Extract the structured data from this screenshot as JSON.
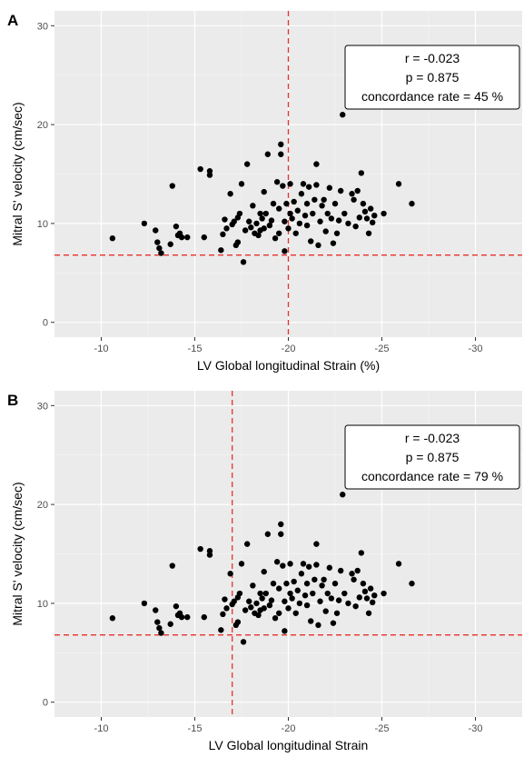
{
  "chart_data": [
    {
      "type": "scatter",
      "panel_label": "A",
      "xlabel": "LV Global longitudinal Strain (%)",
      "ylabel": "Mitral S' velocity (cm/sec)",
      "xlim": [
        -7.5,
        -32.5
      ],
      "ylim": [
        -1.5,
        31.5
      ],
      "x_ticks": [
        -10,
        -15,
        -20,
        -25,
        -30
      ],
      "y_ticks": [
        0,
        10,
        20,
        30
      ],
      "background": "#ebebeb",
      "grid": true,
      "point_color": "#000000",
      "reference_lines": {
        "vertical_x": -20,
        "horizontal_y": 6.8,
        "color": "#e8312a",
        "style": "dashed"
      },
      "annotation": {
        "lines": [
          "r = -0.023",
          "p = 0.875",
          "concordance rate = 45 %"
        ],
        "position": "top-right"
      }
    },
    {
      "type": "scatter",
      "panel_label": "B",
      "xlabel": "LV Global longitudinal Strain",
      "ylabel": "Mitral S' velocity (cm/sec)",
      "xlim": [
        -7.5,
        -32.5
      ],
      "ylim": [
        -1.5,
        31.5
      ],
      "x_ticks": [
        -10,
        -15,
        -20,
        -25,
        -30
      ],
      "y_ticks": [
        0,
        10,
        20,
        30
      ],
      "background": "#ebebeb",
      "grid": true,
      "point_color": "#000000",
      "reference_lines": {
        "vertical_x": -17,
        "horizontal_y": 6.8,
        "color": "#e8312a",
        "style": "dashed"
      },
      "annotation": {
        "lines": [
          "r = -0.023",
          "p = 0.875",
          "concordance rate = 79 %"
        ],
        "position": "top-right"
      }
    }
  ],
  "points": [
    [
      -10.6,
      8.5
    ],
    [
      -12.3,
      10.0
    ],
    [
      -12.9,
      9.3
    ],
    [
      -13.0,
      8.1
    ],
    [
      -13.1,
      7.5
    ],
    [
      -13.2,
      7.0
    ],
    [
      -13.7,
      7.9
    ],
    [
      -13.8,
      13.8
    ],
    [
      -14.0,
      9.7
    ],
    [
      -14.1,
      8.8
    ],
    [
      -14.2,
      9.0
    ],
    [
      -14.3,
      8.6
    ],
    [
      -14.6,
      8.6
    ],
    [
      -15.3,
      15.5
    ],
    [
      -15.5,
      8.6
    ],
    [
      -15.8,
      15.3
    ],
    [
      -15.8,
      14.9
    ],
    [
      -16.4,
      7.3
    ],
    [
      -16.5,
      8.9
    ],
    [
      -16.6,
      10.4
    ],
    [
      -16.7,
      9.5
    ],
    [
      -16.9,
      13.0
    ],
    [
      -17.0,
      9.9
    ],
    [
      -17.1,
      10.2
    ],
    [
      -17.2,
      7.8
    ],
    [
      -17.3,
      8.1
    ],
    [
      -17.3,
      10.6
    ],
    [
      -17.4,
      11.0
    ],
    [
      -17.5,
      14.0
    ],
    [
      -17.6,
      6.1
    ],
    [
      -17.7,
      9.3
    ],
    [
      -17.8,
      16.0
    ],
    [
      -17.9,
      10.2
    ],
    [
      -18.0,
      9.6
    ],
    [
      -18.1,
      11.8
    ],
    [
      -18.2,
      9.0
    ],
    [
      -18.3,
      10.0
    ],
    [
      -18.4,
      8.8
    ],
    [
      -18.5,
      9.3
    ],
    [
      -18.5,
      11.0
    ],
    [
      -18.6,
      10.5
    ],
    [
      -18.7,
      9.5
    ],
    [
      -18.7,
      13.2
    ],
    [
      -18.8,
      11.0
    ],
    [
      -18.9,
      17.0
    ],
    [
      -19.0,
      9.8
    ],
    [
      -19.1,
      10.3
    ],
    [
      -19.2,
      12.0
    ],
    [
      -19.3,
      8.5
    ],
    [
      -19.4,
      14.2
    ],
    [
      -19.5,
      9.0
    ],
    [
      -19.5,
      11.5
    ],
    [
      -19.6,
      17.0
    ],
    [
      -19.6,
      18.0
    ],
    [
      -19.7,
      13.8
    ],
    [
      -19.8,
      7.2
    ],
    [
      -19.8,
      10.2
    ],
    [
      -19.9,
      12.0
    ],
    [
      -20.0,
      9.5
    ],
    [
      -20.1,
      11.0
    ],
    [
      -20.1,
      14.0
    ],
    [
      -20.2,
      10.5
    ],
    [
      -20.3,
      12.2
    ],
    [
      -20.4,
      9.0
    ],
    [
      -20.5,
      11.3
    ],
    [
      -20.6,
      10.0
    ],
    [
      -20.7,
      13.0
    ],
    [
      -20.8,
      14.0
    ],
    [
      -20.9,
      10.8
    ],
    [
      -21.0,
      12.0
    ],
    [
      -21.0,
      9.8
    ],
    [
      -21.1,
      13.7
    ],
    [
      -21.2,
      8.2
    ],
    [
      -21.3,
      11.0
    ],
    [
      -21.4,
      12.4
    ],
    [
      -21.5,
      16.0
    ],
    [
      -21.5,
      13.9
    ],
    [
      -21.6,
      7.8
    ],
    [
      -21.7,
      10.2
    ],
    [
      -21.8,
      11.8
    ],
    [
      -21.9,
      12.4
    ],
    [
      -22.0,
      9.2
    ],
    [
      -22.1,
      11.0
    ],
    [
      -22.2,
      13.6
    ],
    [
      -22.3,
      10.5
    ],
    [
      -22.4,
      8.0
    ],
    [
      -22.5,
      12.0
    ],
    [
      -22.6,
      9.0
    ],
    [
      -22.7,
      10.3
    ],
    [
      -22.8,
      13.3
    ],
    [
      -22.9,
      21.0
    ],
    [
      -23.0,
      11.0
    ],
    [
      -23.2,
      10.0
    ],
    [
      -23.4,
      13.0
    ],
    [
      -23.5,
      12.4
    ],
    [
      -23.6,
      9.7
    ],
    [
      -23.7,
      13.3
    ],
    [
      -23.8,
      10.6
    ],
    [
      -23.9,
      15.1
    ],
    [
      -24.0,
      12.0
    ],
    [
      -24.1,
      11.2
    ],
    [
      -24.2,
      10.5
    ],
    [
      -24.3,
      9.0
    ],
    [
      -24.4,
      11.5
    ],
    [
      -24.5,
      10.1
    ],
    [
      -24.6,
      10.8
    ],
    [
      -25.1,
      11.0
    ],
    [
      -25.9,
      14.0
    ],
    [
      -26.6,
      12.0
    ]
  ]
}
